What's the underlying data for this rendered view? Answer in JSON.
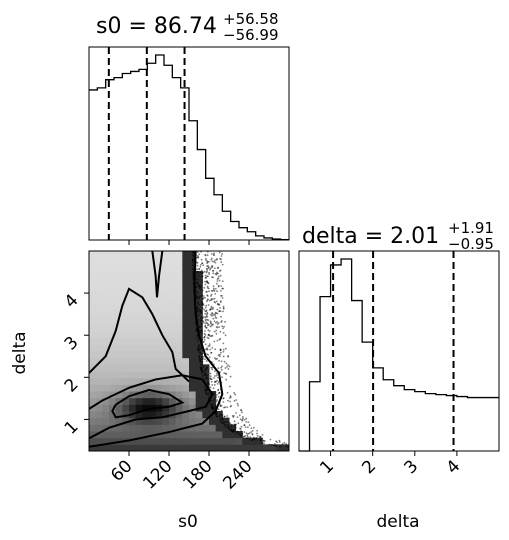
{
  "chart_data": [
    {
      "type": "histogram",
      "panel": "s0-marginal",
      "title_param": "s0",
      "title_value": "86.74",
      "title_plus": "+56.58",
      "title_minus": "−56.99",
      "xlim": [
        0,
        300
      ],
      "xticks": [
        60,
        120,
        180,
        240
      ],
      "quantiles": [
        29.75,
        86.74,
        143.32
      ],
      "bins": [
        0,
        12.5,
        25,
        37.5,
        50,
        62.5,
        75,
        87.5,
        100,
        112.5,
        125,
        137.5,
        150,
        162.5,
        175,
        187.5,
        200,
        212.5,
        225,
        237.5,
        250,
        262.5,
        275,
        287.5,
        300
      ],
      "counts": [
        0.73,
        0.74,
        0.78,
        0.79,
        0.81,
        0.82,
        0.83,
        0.86,
        0.9,
        0.85,
        0.79,
        0.74,
        0.58,
        0.44,
        0.3,
        0.22,
        0.14,
        0.09,
        0.06,
        0.04,
        0.02,
        0.01,
        0.005,
        0.002
      ]
    },
    {
      "type": "histogram",
      "panel": "delta-marginal",
      "title_param": "delta",
      "title_value": "2.01",
      "title_plus": "+1.91",
      "title_minus": "−0.95",
      "xlim": [
        0.25,
        5
      ],
      "xticks": [
        1,
        2,
        3,
        4
      ],
      "xlabel": "delta",
      "quantiles": [
        1.06,
        2.01,
        3.92
      ],
      "bins": [
        0.25,
        0.5,
        0.75,
        1.0,
        1.25,
        1.5,
        1.75,
        2.0,
        2.25,
        2.5,
        2.75,
        3.0,
        3.25,
        3.5,
        3.75,
        4.0,
        4.25,
        4.5,
        4.75,
        5.0
      ],
      "counts": [
        0.0,
        0.35,
        0.78,
        0.94,
        0.97,
        0.76,
        0.55,
        0.42,
        0.36,
        0.33,
        0.31,
        0.3,
        0.29,
        0.285,
        0.28,
        0.275,
        0.27,
        0.27,
        0.27
      ]
    },
    {
      "type": "heatmap",
      "panel": "joint-s0-delta",
      "xlabel": "s0",
      "ylabel": "delta",
      "xlim": [
        0,
        300
      ],
      "ylim": [
        0.25,
        5
      ],
      "xticks": [
        60,
        120,
        180,
        240
      ],
      "yticks": [
        1,
        2,
        3,
        4
      ],
      "note": "2D posterior density with scattered samples and contour levels; darker = higher density"
    }
  ]
}
